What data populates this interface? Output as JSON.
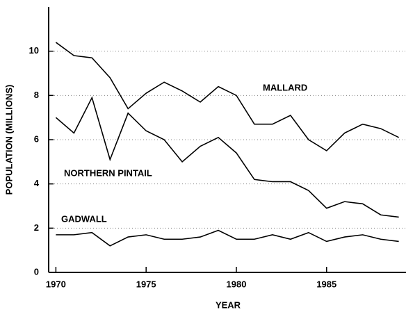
{
  "chart_data": {
    "type": "line",
    "xlabel": "YEAR",
    "ylabel": "POPULATION (MILLIONS)",
    "x": [
      1970,
      1971,
      1972,
      1973,
      1974,
      1975,
      1976,
      1977,
      1978,
      1979,
      1980,
      1981,
      1982,
      1983,
      1984,
      1985,
      1986,
      1987,
      1988,
      1989
    ],
    "series": [
      {
        "name": "MALLARD",
        "color": "#000000",
        "values": [
          10.4,
          9.8,
          9.7,
          8.8,
          7.4,
          8.1,
          8.6,
          8.2,
          7.7,
          8.4,
          8.0,
          6.7,
          6.7,
          7.1,
          6.0,
          5.5,
          6.3,
          6.7,
          6.5,
          6.1
        ]
      },
      {
        "name": "NORTHERN PINTAIL",
        "color": "#000000",
        "values": [
          7.0,
          6.3,
          7.9,
          5.1,
          7.2,
          6.4,
          6.0,
          5.0,
          5.7,
          6.1,
          5.4,
          4.2,
          4.1,
          4.1,
          3.7,
          2.9,
          3.2,
          3.1,
          2.6,
          2.5
        ]
      },
      {
        "name": "GADWALL",
        "color": "#000000",
        "values": [
          1.7,
          1.7,
          1.8,
          1.2,
          1.6,
          1.7,
          1.5,
          1.5,
          1.6,
          1.9,
          1.5,
          1.5,
          1.7,
          1.5,
          1.8,
          1.4,
          1.6,
          1.7,
          1.5,
          1.4
        ]
      }
    ],
    "xlim": [
      1969.6,
      1989.4
    ],
    "xticks": [
      1970,
      1975,
      1980,
      1985
    ],
    "ylim": [
      0,
      12
    ],
    "yticks": [
      0,
      2,
      4,
      6,
      8,
      10
    ],
    "grid": true
  }
}
